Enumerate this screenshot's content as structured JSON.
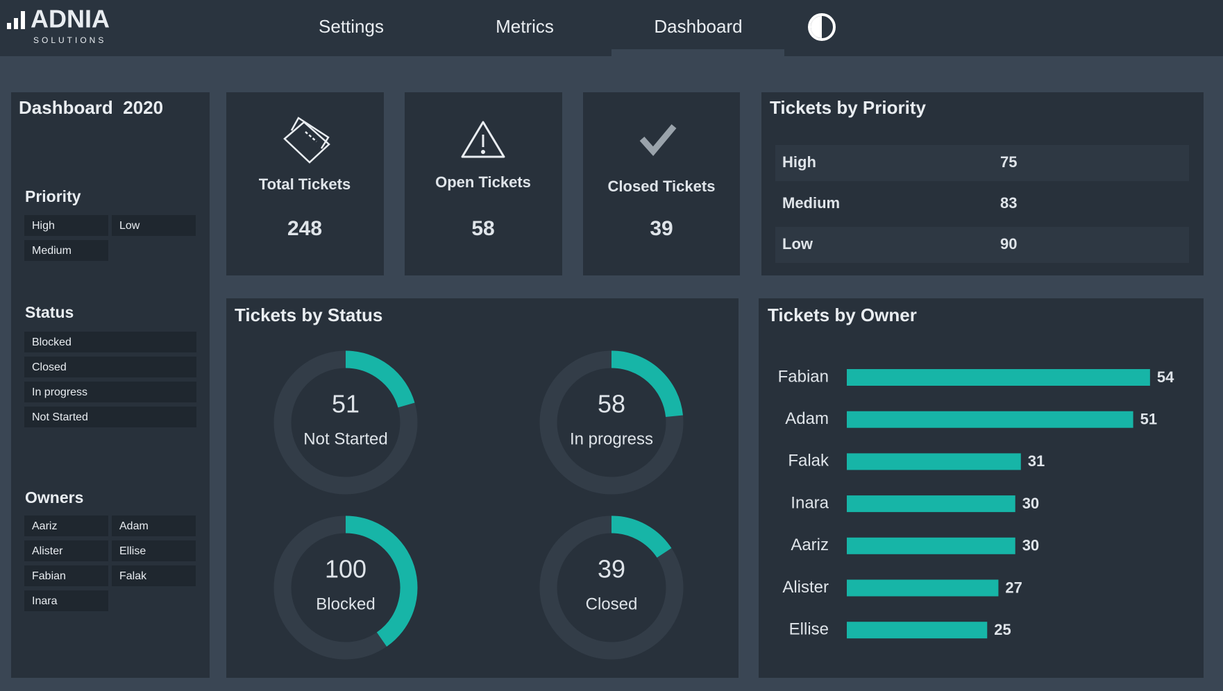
{
  "nav": {
    "logo": "ADNIA",
    "logo_sub": "SOLUTIONS",
    "tabs": [
      "Settings",
      "Metrics",
      "Dashboard"
    ]
  },
  "sidebar": {
    "title": "Dashboard  2020",
    "priority": {
      "heading": "Priority",
      "options": [
        "High",
        "Low",
        "Medium"
      ]
    },
    "status": {
      "heading": "Status",
      "options": [
        "Blocked",
        "Closed",
        "In progress",
        "Not Started"
      ]
    },
    "owners": {
      "heading": "Owners",
      "options": [
        "Aariz",
        "Adam",
        "Alister",
        "Ellise",
        "Fabian",
        "Falak",
        "Inara"
      ]
    }
  },
  "kpis": [
    {
      "label": "Total Tickets",
      "value": 248
    },
    {
      "label": "Open Tickets",
      "value": 58
    },
    {
      "label": "Closed Tickets",
      "value": 39
    }
  ],
  "priority_table": {
    "title": "Tickets by Priority",
    "rows": [
      [
        "High",
        75
      ],
      [
        "Medium",
        83
      ],
      [
        "Low",
        90
      ]
    ]
  },
  "status_chart": {
    "type": "donut",
    "title": "Tickets by Status",
    "categories": [
      "Not Started",
      "In progress",
      "Blocked",
      "Closed"
    ],
    "values": [
      51,
      58,
      100,
      39
    ],
    "color": "#17b5a7"
  },
  "owner_chart": {
    "type": "bar",
    "title": "Tickets by Owner",
    "categories": [
      "Fabian",
      "Adam",
      "Falak",
      "Inara",
      "Aariz",
      "Alister",
      "Ellise"
    ],
    "values": [
      54,
      51,
      31,
      30,
      30,
      27,
      25
    ],
    "color": "#17b5a7"
  }
}
